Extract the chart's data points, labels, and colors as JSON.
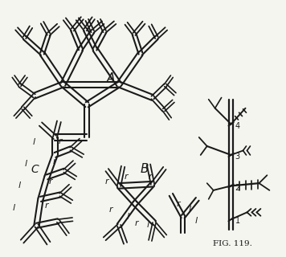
{
  "background_color": "#f5f5f0",
  "line_color": "#1a1a1a",
  "label_A": "A",
  "label_B": "B",
  "label_C": "C",
  "caption_right": "FIG. 119.",
  "fig_width": 3.56,
  "fig_height": 3.2,
  "dpi": 100
}
